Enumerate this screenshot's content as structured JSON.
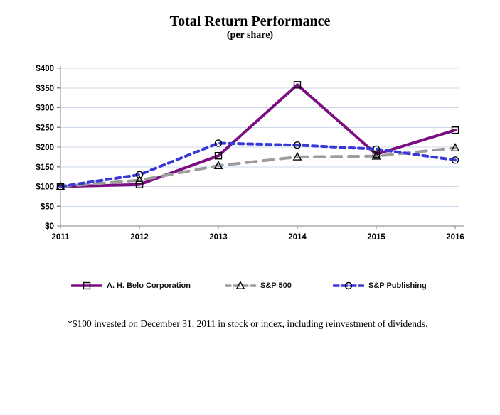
{
  "title": "Total Return Performance",
  "subtitle": "(per share)",
  "footnote": "*$100 invested on December 31, 2011 in stock or index, including reinvestment of dividends.",
  "colors": {
    "belo_purple": "#7b0e80",
    "sp500_gray": "#9c9c9c",
    "publishing_blue": "#3939d9",
    "gridline": "#ccd9ea",
    "axis": "#808080",
    "marker_outline": "#000000"
  },
  "chart_data": {
    "type": "line",
    "categories": [
      "2011",
      "2012",
      "2013",
      "2014",
      "2015",
      "2016"
    ],
    "series": [
      {
        "name": "A. H. Belo Corporation",
        "values": [
          100,
          105,
          178,
          358,
          182,
          243
        ],
        "color": "#7b0e80",
        "dash": "none",
        "marker": "square"
      },
      {
        "name": "S&P 500",
        "values": [
          100,
          116,
          153,
          175,
          177,
          198
        ],
        "color": "#9c9c9c",
        "dash": "14,10",
        "marker": "triangle"
      },
      {
        "name": "S&P Publishing",
        "values": [
          100,
          130,
          210,
          205,
          195,
          167
        ],
        "color": "#3939d9",
        "dash": "7,6",
        "marker": "circle"
      }
    ],
    "ylim": [
      0,
      400
    ],
    "ytick_step": 50,
    "ytick_labels": [
      "$0",
      "$50",
      "$100",
      "$150",
      "$200",
      "$250",
      "$300",
      "$350",
      "$400"
    ],
    "xlabel": "",
    "ylabel": "",
    "grid": "horizontal",
    "legend_position": "bottom"
  }
}
